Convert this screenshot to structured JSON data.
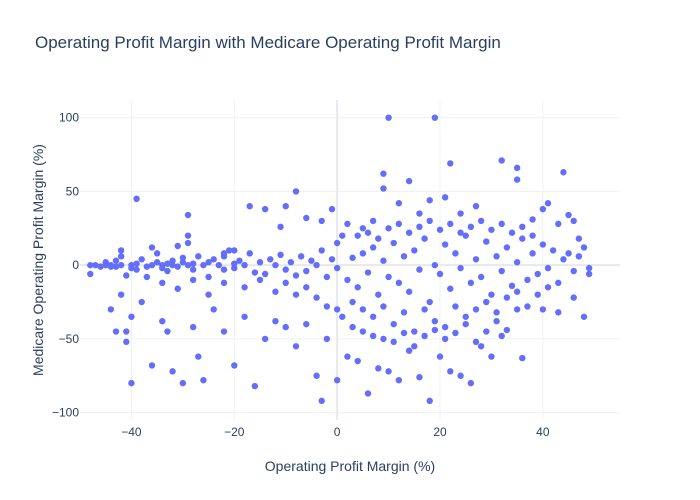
{
  "chart_data": {
    "type": "scatter",
    "title": "Operating Profit Margin with Medicare Operating Profit Margin",
    "xlabel": "Operating Profit Margin (%)",
    "ylabel": "Medicare Operating Profit Margin (%)",
    "xlim": [
      -50,
      55
    ],
    "ylim": [
      -105,
      112
    ],
    "xticks": [
      -40,
      -20,
      0,
      20,
      40
    ],
    "yticks": [
      -100,
      -50,
      0,
      50,
      100
    ],
    "grid": true,
    "marker_color": "#636efa",
    "points": [
      [
        -48,
        0
      ],
      [
        -48,
        -6
      ],
      [
        -47,
        0
      ],
      [
        -46,
        -1
      ],
      [
        -45,
        0
      ],
      [
        -45,
        2
      ],
      [
        -44,
        -1
      ],
      [
        -44,
        0
      ],
      [
        -43,
        -1
      ],
      [
        -43,
        3
      ],
      [
        -42,
        0
      ],
      [
        -42,
        10
      ],
      [
        -42,
        6
      ],
      [
        -41,
        -45
      ],
      [
        -41,
        -7
      ],
      [
        -40,
        0
      ],
      [
        -40,
        -2
      ],
      [
        -39,
        -3
      ],
      [
        -39,
        1
      ],
      [
        -38,
        4
      ],
      [
        -37,
        -1
      ],
      [
        -36,
        0
      ],
      [
        -36,
        12
      ],
      [
        -35,
        2
      ],
      [
        -35,
        8
      ],
      [
        -34,
        0
      ],
      [
        -34,
        -2
      ],
      [
        -33,
        1
      ],
      [
        -33,
        -4
      ],
      [
        -32,
        0
      ],
      [
        -32,
        3
      ],
      [
        -31,
        -1
      ],
      [
        -30,
        2
      ],
      [
        -30,
        5
      ],
      [
        -29,
        0
      ],
      [
        -29,
        34
      ],
      [
        -29,
        20
      ],
      [
        -28,
        -3
      ],
      [
        -28,
        1
      ],
      [
        -27,
        6
      ],
      [
        -26,
        0
      ],
      [
        -25,
        2
      ],
      [
        -25,
        -8
      ],
      [
        -24,
        4
      ],
      [
        -23,
        0
      ],
      [
        -22,
        6
      ],
      [
        -22,
        -3
      ],
      [
        -21,
        10
      ],
      [
        -20,
        1
      ],
      [
        -20,
        -2
      ],
      [
        -19,
        3
      ],
      [
        -18,
        0
      ],
      [
        -17,
        8
      ],
      [
        -16,
        -5
      ],
      [
        -15,
        2
      ],
      [
        -14,
        -6
      ],
      [
        -13,
        4
      ],
      [
        -12,
        0
      ],
      [
        -11,
        7
      ],
      [
        -10,
        -3
      ],
      [
        -9,
        2
      ],
      [
        -8,
        -7
      ],
      [
        -7,
        6
      ],
      [
        -6,
        -4
      ],
      [
        -5,
        3
      ],
      [
        -4,
        0
      ],
      [
        -3,
        10
      ],
      [
        -2,
        -8
      ],
      [
        -1,
        4
      ],
      [
        0,
        -2
      ],
      [
        -44,
        -30
      ],
      [
        -43,
        -45
      ],
      [
        -42,
        -20
      ],
      [
        -41,
        -52
      ],
      [
        -40,
        -80
      ],
      [
        -40,
        -35
      ],
      [
        -38,
        -25
      ],
      [
        -36,
        -68
      ],
      [
        -34,
        -38
      ],
      [
        -33,
        -45
      ],
      [
        -32,
        -72
      ],
      [
        -30,
        -80
      ],
      [
        -28,
        -42
      ],
      [
        -27,
        -62
      ],
      [
        -26,
        -78
      ],
      [
        -24,
        -30
      ],
      [
        -22,
        -45
      ],
      [
        -20,
        -68
      ],
      [
        -18,
        -35
      ],
      [
        -16,
        -82
      ],
      [
        -14,
        -50
      ],
      [
        -12,
        -38
      ],
      [
        -10,
        -42
      ],
      [
        -8,
        -55
      ],
      [
        -6,
        -40
      ],
      [
        -4,
        -75
      ],
      [
        -3,
        -92
      ],
      [
        -2,
        -50
      ],
      [
        0,
        -78
      ],
      [
        2,
        -62
      ],
      [
        4,
        -65
      ],
      [
        6,
        -87
      ],
      [
        8,
        -70
      ],
      [
        10,
        -72
      ],
      [
        12,
        -78
      ],
      [
        14,
        -58
      ],
      [
        16,
        -76
      ],
      [
        18,
        -92
      ],
      [
        20,
        -62
      ],
      [
        22,
        -72
      ],
      [
        24,
        -75
      ],
      [
        26,
        -80
      ],
      [
        28,
        -55
      ],
      [
        30,
        -62
      ],
      [
        32,
        -48
      ],
      [
        36,
        -63
      ],
      [
        40,
        -30
      ],
      [
        43,
        -32
      ],
      [
        46,
        -22
      ],
      [
        48,
        -35
      ],
      [
        49,
        -2
      ],
      [
        49,
        -6
      ],
      [
        48,
        12
      ],
      [
        47,
        18
      ],
      [
        46,
        30
      ],
      [
        45,
        34
      ],
      [
        44,
        63
      ],
      [
        -39,
        45
      ],
      [
        -31,
        13
      ],
      [
        -29,
        15
      ],
      [
        -22,
        8
      ],
      [
        -20,
        10
      ],
      [
        -17,
        40
      ],
      [
        -14,
        38
      ],
      [
        -11,
        26
      ],
      [
        -10,
        40
      ],
      [
        -8,
        50
      ],
      [
        -6,
        32
      ],
      [
        -3,
        30
      ],
      [
        -1,
        38
      ],
      [
        2,
        28
      ],
      [
        5,
        25
      ],
      [
        7,
        30
      ],
      [
        9,
        52
      ],
      [
        9,
        62
      ],
      [
        10,
        100
      ],
      [
        12,
        42
      ],
      [
        14,
        57
      ],
      [
        16,
        35
      ],
      [
        18,
        44
      ],
      [
        19,
        100
      ],
      [
        21,
        46
      ],
      [
        22,
        69
      ],
      [
        24,
        35
      ],
      [
        27,
        40
      ],
      [
        32,
        71
      ],
      [
        35,
        58
      ],
      [
        35,
        66
      ],
      [
        38,
        31
      ],
      [
        40,
        38
      ],
      [
        41,
        42
      ],
      [
        43,
        28
      ],
      [
        2,
        -10
      ],
      [
        3,
        5
      ],
      [
        4,
        -15
      ],
      [
        5,
        8
      ],
      [
        6,
        -5
      ],
      [
        7,
        12
      ],
      [
        8,
        -20
      ],
      [
        9,
        3
      ],
      [
        10,
        -8
      ],
      [
        11,
        15
      ],
      [
        12,
        -12
      ],
      [
        13,
        6
      ],
      [
        14,
        -18
      ],
      [
        15,
        10
      ],
      [
        16,
        -3
      ],
      [
        17,
        18
      ],
      [
        18,
        -25
      ],
      [
        19,
        0
      ],
      [
        20,
        -6
      ],
      [
        21,
        14
      ],
      [
        22,
        -16
      ],
      [
        23,
        8
      ],
      [
        24,
        -2
      ],
      [
        25,
        20
      ],
      [
        26,
        -12
      ],
      [
        27,
        4
      ],
      [
        28,
        -8
      ],
      [
        29,
        16
      ],
      [
        30,
        -20
      ],
      [
        31,
        6
      ],
      [
        32,
        -4
      ],
      [
        33,
        12
      ],
      [
        34,
        -14
      ],
      [
        35,
        2
      ],
      [
        36,
        18
      ],
      [
        37,
        -10
      ],
      [
        38,
        8
      ],
      [
        39,
        -6
      ],
      [
        40,
        14
      ],
      [
        41,
        -2
      ],
      [
        42,
        10
      ],
      [
        43,
        -12
      ],
      [
        44,
        4
      ],
      [
        45,
        8
      ],
      [
        46,
        -4
      ],
      [
        47,
        6
      ],
      [
        3,
        -25
      ],
      [
        5,
        -30
      ],
      [
        7,
        -35
      ],
      [
        9,
        -28
      ],
      [
        11,
        -40
      ],
      [
        13,
        -32
      ],
      [
        15,
        -45
      ],
      [
        17,
        -30
      ],
      [
        19,
        -38
      ],
      [
        21,
        -42
      ],
      [
        23,
        -28
      ],
      [
        25,
        -35
      ],
      [
        27,
        -30
      ],
      [
        29,
        -25
      ],
      [
        31,
        -32
      ],
      [
        33,
        -22
      ],
      [
        35,
        -18
      ],
      [
        37,
        -28
      ],
      [
        39,
        -20
      ],
      [
        41,
        -15
      ],
      [
        4,
        20
      ],
      [
        6,
        22
      ],
      [
        8,
        18
      ],
      [
        10,
        25
      ],
      [
        12,
        28
      ],
      [
        14,
        22
      ],
      [
        16,
        26
      ],
      [
        18,
        30
      ],
      [
        20,
        24
      ],
      [
        22,
        28
      ],
      [
        24,
        22
      ],
      [
        26,
        26
      ],
      [
        28,
        30
      ],
      [
        30,
        24
      ],
      [
        32,
        28
      ],
      [
        34,
        22
      ],
      [
        36,
        26
      ],
      [
        38,
        20
      ],
      [
        -6,
        -15
      ],
      [
        -8,
        -20
      ],
      [
        -10,
        -12
      ],
      [
        -12,
        -18
      ],
      [
        -15,
        -10
      ],
      [
        -18,
        -15
      ],
      [
        -22,
        -12
      ],
      [
        -25,
        -20
      ],
      [
        -28,
        -10
      ],
      [
        -31,
        -16
      ],
      [
        -34,
        -12
      ],
      [
        -37,
        -8
      ],
      [
        -4,
        -22
      ],
      [
        -2,
        -28
      ],
      [
        0,
        -30
      ],
      [
        1,
        -35
      ],
      [
        3,
        -42
      ],
      [
        5,
        -45
      ],
      [
        7,
        -48
      ],
      [
        9,
        -50
      ],
      [
        11,
        -52
      ],
      [
        13,
        -46
      ],
      [
        15,
        -55
      ],
      [
        17,
        -48
      ],
      [
        19,
        -44
      ],
      [
        21,
        -50
      ],
      [
        23,
        -46
      ],
      [
        25,
        -40
      ],
      [
        27,
        -52
      ],
      [
        29,
        -45
      ],
      [
        31,
        -38
      ],
      [
        33,
        -44
      ],
      [
        35,
        -30
      ],
      [
        0,
        15
      ],
      [
        1,
        20
      ]
    ]
  }
}
